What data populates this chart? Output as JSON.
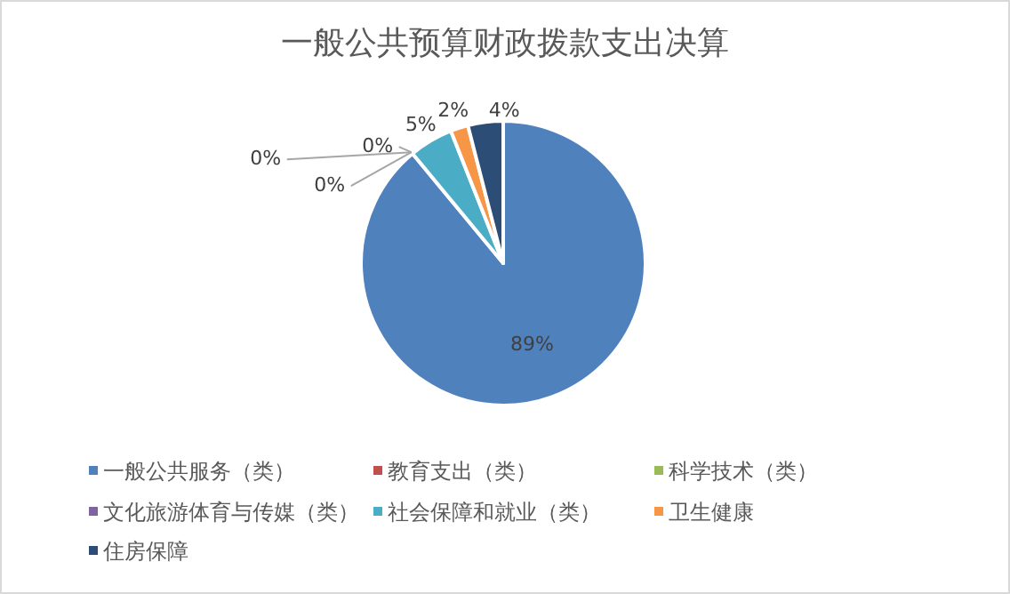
{
  "chart_data": {
    "type": "pie",
    "title": "一般公共预算财政拨款支出决算",
    "categories": [
      "一般公共服务（类）",
      "教育支出（类）",
      "科学技术（类）",
      "文化旅游体育与传媒（类）",
      "社会保障和就业（类）",
      "卫生健康",
      "住房保障"
    ],
    "values": [
      89,
      0,
      0,
      0,
      5,
      2,
      4
    ],
    "colors": [
      "#4f81bd",
      "#c0504d",
      "#9bbb59",
      "#8064a2",
      "#4bacc6",
      "#f79646",
      "#2c4d75"
    ],
    "value_labels": [
      "89%",
      "0%",
      "0%",
      "0%",
      "5%",
      "2%",
      "4%"
    ],
    "legend": "bottom"
  }
}
